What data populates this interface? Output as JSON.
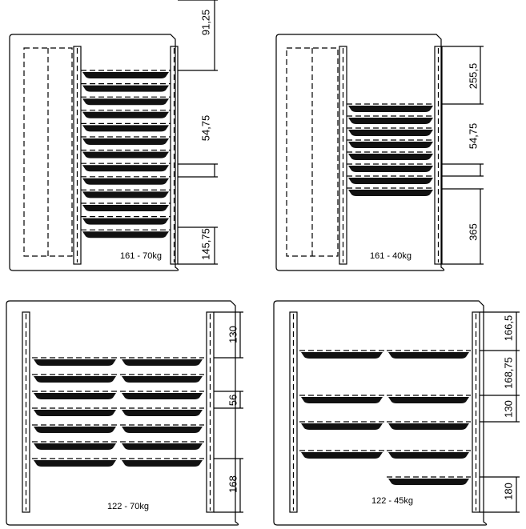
{
  "panels": [
    {
      "caption": "161 - 70kg",
      "dimensions": [
        "91,25",
        "54,75",
        "145,75"
      ]
    },
    {
      "caption": "161 - 40kg",
      "dimensions": [
        "255,5",
        "54,75",
        "365"
      ]
    },
    {
      "caption": "122 - 70kg",
      "dimensions": [
        "130",
        "56",
        "168"
      ]
    },
    {
      "caption": "122 - 45kg",
      "dimensions": [
        "166,5",
        "168,75",
        "130",
        "180"
      ]
    }
  ]
}
